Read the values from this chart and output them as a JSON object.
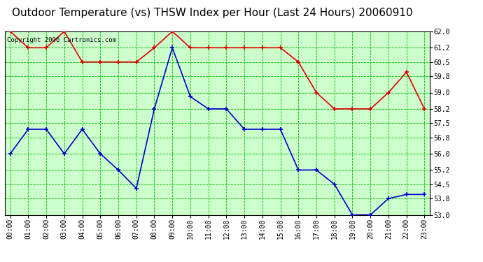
{
  "title": "Outdoor Temperature (vs) THSW Index per Hour (Last 24 Hours) 20060910",
  "copyright": "Copyright 2006 Cartronics.com",
  "hours": [
    "00:00",
    "01:00",
    "02:00",
    "03:00",
    "04:00",
    "05:00",
    "06:00",
    "07:00",
    "08:00",
    "09:00",
    "10:00",
    "11:00",
    "12:00",
    "13:00",
    "14:00",
    "15:00",
    "16:00",
    "17:00",
    "18:00",
    "19:00",
    "20:00",
    "21:00",
    "22:00",
    "23:00"
  ],
  "red_data": [
    62.0,
    61.2,
    61.2,
    62.0,
    60.5,
    60.5,
    60.5,
    60.5,
    61.2,
    62.0,
    61.2,
    61.2,
    61.2,
    61.2,
    61.2,
    61.2,
    60.5,
    59.0,
    58.2,
    58.2,
    58.2,
    59.0,
    60.0,
    58.2
  ],
  "blue_data": [
    56.0,
    57.2,
    57.2,
    56.0,
    57.2,
    56.0,
    55.2,
    54.3,
    58.2,
    61.2,
    58.8,
    58.2,
    58.2,
    57.2,
    57.2,
    57.2,
    55.2,
    55.2,
    54.5,
    53.0,
    53.0,
    53.8,
    54.0,
    54.0
  ],
  "ylim_min": 53.0,
  "ylim_max": 62.0,
  "yticks": [
    53.0,
    53.8,
    54.5,
    55.2,
    56.0,
    56.8,
    57.5,
    58.2,
    59.0,
    59.8,
    60.5,
    61.2,
    62.0
  ],
  "red_color": "#dd0000",
  "blue_color": "#0000cc",
  "grid_color": "#00bb00",
  "bg_color": "#ffffff",
  "plot_bg_color": "#ccffcc",
  "title_fontsize": 11,
  "copyright_fontsize": 6.5,
  "tick_fontsize": 7
}
